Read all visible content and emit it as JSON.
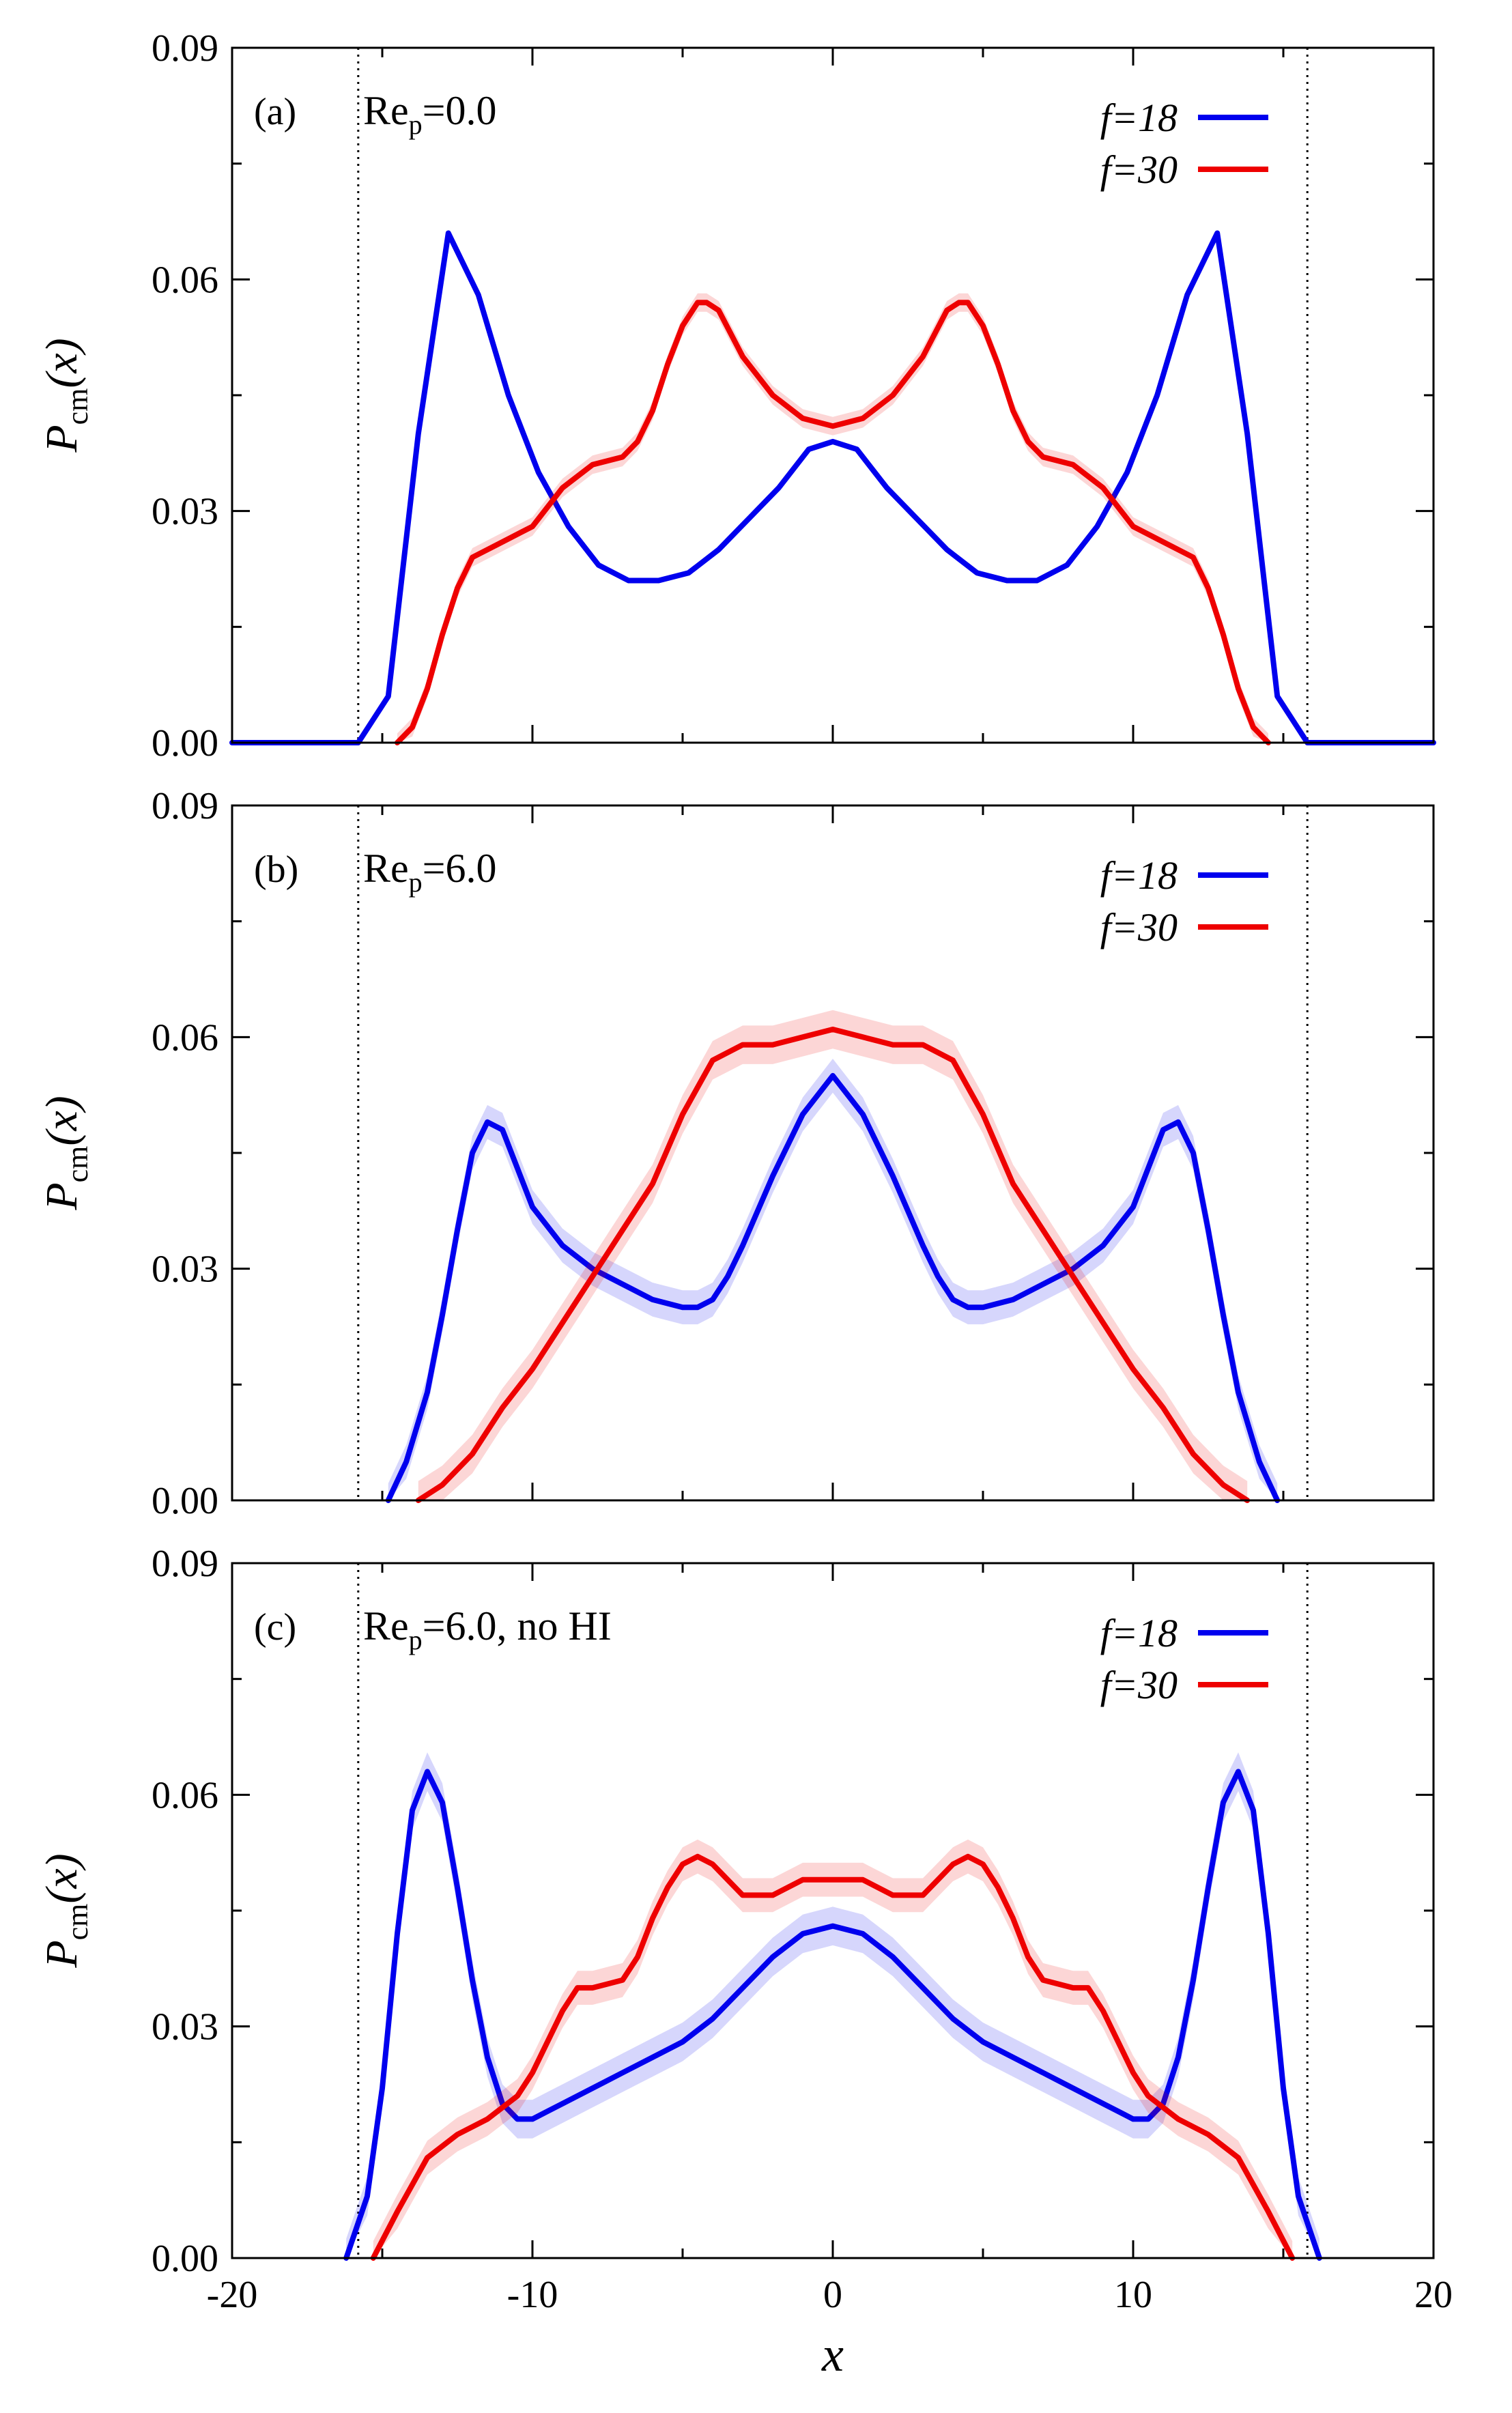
{
  "chart_data": [
    {
      "type": "line",
      "panel_tag": "(a)",
      "title_main": "Re",
      "title_sub": "p",
      "title_rest": "=0.0",
      "ylabel_main": "P",
      "ylabel_sub": "cm",
      "ylabel_rest": "(x)",
      "xlim": [
        -20,
        20
      ],
      "ylim": [
        0,
        0.09
      ],
      "yticks": [
        "0.00",
        "0.03",
        "0.06",
        "0.09"
      ],
      "walls": [
        -15.8,
        15.8
      ],
      "legend_position": "top-right",
      "series": [
        {
          "name": "f=18",
          "color": "#0000ee",
          "band": 0.0003,
          "x": [
            -20,
            -15.8,
            -14.8,
            -13.8,
            -12.8,
            -11.8,
            -10.8,
            -9.8,
            -8.8,
            -7.8,
            -6.8,
            -5.8,
            -4.8,
            -3.8,
            -2.8,
            -1.8,
            -0.8,
            0,
            0.8,
            1.8,
            2.8,
            3.8,
            4.8,
            5.8,
            6.8,
            7.8,
            8.8,
            9.8,
            10.8,
            11.8,
            12.8,
            13.8,
            14.8,
            15.8,
            20
          ],
          "y": [
            0,
            0,
            0.006,
            0.04,
            0.066,
            0.058,
            0.045,
            0.035,
            0.028,
            0.023,
            0.021,
            0.021,
            0.022,
            0.025,
            0.029,
            0.033,
            0.038,
            0.039,
            0.038,
            0.033,
            0.029,
            0.025,
            0.022,
            0.021,
            0.021,
            0.023,
            0.028,
            0.035,
            0.045,
            0.058,
            0.066,
            0.04,
            0.006,
            0,
            0
          ]
        },
        {
          "name": "f=30",
          "color": "#ee0000",
          "band": 0.0012,
          "x": [
            -14.5,
            -14,
            -13.5,
            -13,
            -12.5,
            -12,
            -11,
            -10,
            -9,
            -8,
            -7,
            -6.5,
            -6,
            -5.5,
            -5,
            -4.5,
            -4.2,
            -3.8,
            -3,
            -2,
            -1,
            0,
            1,
            2,
            3,
            3.8,
            4.2,
            4.5,
            5,
            5.5,
            6,
            6.5,
            7,
            8,
            9,
            10,
            11,
            12,
            12.5,
            13,
            13.5,
            14,
            14.5
          ],
          "y": [
            0,
            0.002,
            0.007,
            0.014,
            0.02,
            0.024,
            0.026,
            0.028,
            0.033,
            0.036,
            0.037,
            0.039,
            0.043,
            0.049,
            0.054,
            0.057,
            0.057,
            0.056,
            0.05,
            0.045,
            0.042,
            0.041,
            0.042,
            0.045,
            0.05,
            0.056,
            0.057,
            0.057,
            0.054,
            0.049,
            0.043,
            0.039,
            0.037,
            0.036,
            0.033,
            0.028,
            0.026,
            0.024,
            0.02,
            0.014,
            0.007,
            0.002,
            0
          ]
        }
      ]
    },
    {
      "type": "line",
      "panel_tag": "(b)",
      "title_main": "Re",
      "title_sub": "p",
      "title_rest": "=6.0",
      "ylabel_main": "P",
      "ylabel_sub": "cm",
      "ylabel_rest": "(x)",
      "xlim": [
        -20,
        20
      ],
      "ylim": [
        0,
        0.09
      ],
      "yticks": [
        "0.00",
        "0.03",
        "0.06",
        "0.09"
      ],
      "walls": [
        -15.8,
        15.8
      ],
      "legend_position": "top-right",
      "series": [
        {
          "name": "f=18",
          "color": "#0000ee",
          "band": 0.0022,
          "x": [
            -14.8,
            -14.2,
            -13.5,
            -13,
            -12.5,
            -12,
            -11.5,
            -11,
            -10.5,
            -10,
            -9,
            -8,
            -7,
            -6,
            -5,
            -4.5,
            -4,
            -3.5,
            -3,
            -2,
            -1,
            0,
            1,
            2,
            3,
            3.5,
            4,
            4.5,
            5,
            6,
            7,
            8,
            9,
            10,
            10.5,
            11,
            11.5,
            12,
            12.5,
            13,
            13.5,
            14.2,
            14.8
          ],
          "y": [
            0,
            0.005,
            0.014,
            0.024,
            0.035,
            0.045,
            0.049,
            0.048,
            0.043,
            0.038,
            0.033,
            0.03,
            0.028,
            0.026,
            0.025,
            0.025,
            0.026,
            0.029,
            0.033,
            0.042,
            0.05,
            0.055,
            0.05,
            0.042,
            0.033,
            0.029,
            0.026,
            0.025,
            0.025,
            0.026,
            0.028,
            0.03,
            0.033,
            0.038,
            0.043,
            0.048,
            0.049,
            0.045,
            0.035,
            0.024,
            0.014,
            0.005,
            0
          ]
        },
        {
          "name": "f=30",
          "color": "#ee0000",
          "band": 0.0025,
          "x": [
            -13.8,
            -13,
            -12,
            -11,
            -10,
            -9,
            -8,
            -7,
            -6,
            -5,
            -4,
            -3,
            -2,
            -1,
            0,
            1,
            2,
            3,
            4,
            5,
            6,
            7,
            8,
            9,
            10,
            11,
            12,
            13,
            13.8
          ],
          "y": [
            0,
            0.002,
            0.006,
            0.012,
            0.017,
            0.023,
            0.029,
            0.035,
            0.041,
            0.05,
            0.057,
            0.059,
            0.059,
            0.06,
            0.061,
            0.06,
            0.059,
            0.059,
            0.057,
            0.05,
            0.041,
            0.035,
            0.029,
            0.023,
            0.017,
            0.012,
            0.006,
            0.002,
            0
          ]
        }
      ]
    },
    {
      "type": "line",
      "panel_tag": "(c)",
      "title_main": "Re",
      "title_sub": "p",
      "title_rest": "=6.0, no HI",
      "ylabel_main": "P",
      "ylabel_sub": "cm",
      "ylabel_rest": "(x)",
      "xlabel": "x",
      "xlim": [
        -20,
        20
      ],
      "xticks": [
        "-20",
        "-10",
        "0",
        "10",
        "20"
      ],
      "ylim": [
        0,
        0.09
      ],
      "yticks": [
        "0.00",
        "0.03",
        "0.06",
        "0.09"
      ],
      "walls": [
        -15.8,
        15.8
      ],
      "legend_position": "top-right",
      "series": [
        {
          "name": "f=18",
          "color": "#0000ee",
          "band": 0.0025,
          "x": [
            -16.2,
            -15.5,
            -15,
            -14.5,
            -14,
            -13.5,
            -13,
            -12.5,
            -12,
            -11.5,
            -11,
            -10.5,
            -10,
            -9.5,
            -9,
            -8,
            -7,
            -6,
            -5,
            -4,
            -3,
            -2,
            -1,
            0,
            1,
            2,
            3,
            4,
            5,
            6,
            7,
            8,
            9,
            9.5,
            10,
            10.5,
            11,
            11.5,
            12,
            12.5,
            13,
            13.5,
            14,
            14.5,
            15,
            15.5,
            16.2
          ],
          "y": [
            0,
            0.008,
            0.022,
            0.042,
            0.058,
            0.063,
            0.059,
            0.048,
            0.036,
            0.026,
            0.02,
            0.018,
            0.018,
            0.019,
            0.02,
            0.022,
            0.024,
            0.026,
            0.028,
            0.031,
            0.035,
            0.039,
            0.042,
            0.043,
            0.042,
            0.039,
            0.035,
            0.031,
            0.028,
            0.026,
            0.024,
            0.022,
            0.02,
            0.019,
            0.018,
            0.018,
            0.02,
            0.026,
            0.036,
            0.048,
            0.059,
            0.063,
            0.058,
            0.042,
            0.022,
            0.008,
            0
          ]
        },
        {
          "name": "f=30",
          "color": "#ee0000",
          "band": 0.0022,
          "x": [
            -15.3,
            -14.5,
            -13.5,
            -12.5,
            -11.5,
            -10.5,
            -10,
            -9.5,
            -9,
            -8.5,
            -8,
            -7,
            -6.5,
            -6,
            -5.5,
            -5,
            -4.5,
            -4,
            -3.5,
            -3,
            -2,
            -1,
            0,
            1,
            2,
            3,
            3.5,
            4,
            4.5,
            5,
            5.5,
            6,
            6.5,
            7,
            8,
            8.5,
            9,
            9.5,
            10,
            10.5,
            11.5,
            12.5,
            13.5,
            14.5,
            15.3
          ],
          "y": [
            0,
            0.006,
            0.013,
            0.016,
            0.018,
            0.021,
            0.024,
            0.028,
            0.032,
            0.035,
            0.035,
            0.036,
            0.039,
            0.044,
            0.048,
            0.051,
            0.052,
            0.051,
            0.049,
            0.047,
            0.047,
            0.049,
            0.049,
            0.049,
            0.047,
            0.047,
            0.049,
            0.051,
            0.052,
            0.051,
            0.048,
            0.044,
            0.039,
            0.036,
            0.035,
            0.035,
            0.032,
            0.028,
            0.024,
            0.021,
            0.018,
            0.016,
            0.013,
            0.006,
            0
          ]
        }
      ]
    }
  ]
}
